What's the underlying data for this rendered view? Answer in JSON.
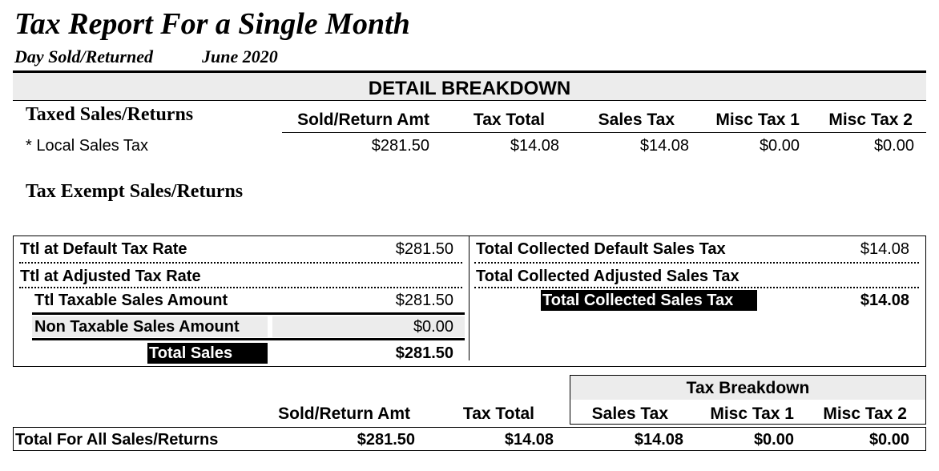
{
  "header": {
    "title": "Tax Report For a Single Month",
    "period_label": "Day Sold/Returned",
    "period_value": "June 2020"
  },
  "detail": {
    "heading": "DETAIL BREAKDOWN",
    "taxed_heading": "Taxed Sales/Returns",
    "columns": [
      "Sold/Return Amt",
      "Tax Total",
      "Sales Tax",
      "Misc Tax 1",
      "Misc Tax 2"
    ],
    "rows": [
      {
        "label": "* Local Sales Tax",
        "values": [
          "$281.50",
          "$14.08",
          "$14.08",
          "$0.00",
          "$0.00"
        ]
      }
    ],
    "exempt_heading": "Tax Exempt Sales/Returns"
  },
  "summary": {
    "default_rate_label": "Ttl at Default Tax Rate",
    "default_rate_value": "$281.50",
    "adjusted_rate_label": "Ttl at Adjusted Tax Rate",
    "taxable_label": "Ttl Taxable Sales Amount",
    "taxable_value": "$281.50",
    "nontaxable_label": "Non Taxable Sales Amount",
    "nontaxable_value": "$0.00",
    "total_sales_label": "Total Sales",
    "total_sales_value": "$281.50",
    "collected_default_label": "Total Collected Default Sales Tax",
    "collected_default_value": "$14.08",
    "collected_adjusted_label": "Total Collected Adjusted Sales Tax",
    "collected_total_label": "Total Collected Sales Tax",
    "collected_total_value": "$14.08"
  },
  "totals": {
    "breakdown_heading": "Tax Breakdown",
    "columns": [
      "Sold/Return Amt",
      "Tax Total",
      "Sales Tax",
      "Misc Tax 1",
      "Misc Tax 2"
    ],
    "row_label": "Total For All Sales/Returns",
    "values": [
      "$281.50",
      "$14.08",
      "$14.08",
      "$0.00",
      "$0.00"
    ]
  }
}
